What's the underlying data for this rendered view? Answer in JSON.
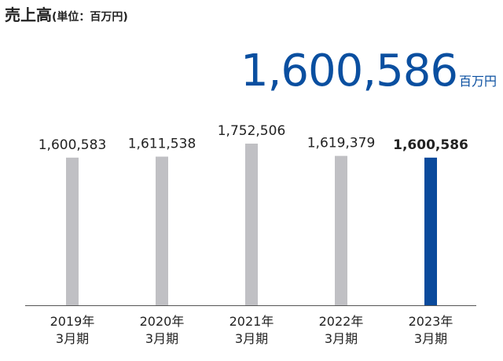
{
  "title": "売上高",
  "unit_label": "(単位：百万円)",
  "headline": {
    "value": "1,600,586",
    "unit": "百万円"
  },
  "colors": {
    "default_bar": "#c0c0c4",
    "highlight_bar": "#0a4a9c",
    "axis": "#555555",
    "headline": "#0a4fa0"
  },
  "chart_data": {
    "type": "bar",
    "title": "売上高",
    "xlabel": "",
    "ylabel": "",
    "categories": [
      "2019年3月期",
      "2020年3月期",
      "2021年3月期",
      "2022年3月期",
      "2023年3月期"
    ],
    "category_lines": [
      [
        "2019年",
        "3月期"
      ],
      [
        "2020年",
        "3月期"
      ],
      [
        "2021年",
        "3月期"
      ],
      [
        "2022年",
        "3月期"
      ],
      [
        "2023年",
        "3月期"
      ]
    ],
    "values": [
      1600583,
      1611538,
      1752506,
      1619379,
      1600586
    ],
    "value_labels": [
      "1,600,583",
      "1,611,538",
      "1,752,506",
      "1,619,379",
      "1,600,586"
    ],
    "highlight_index": 4,
    "ylim": [
      0,
      1752506
    ],
    "grid": false,
    "legend": "none"
  }
}
